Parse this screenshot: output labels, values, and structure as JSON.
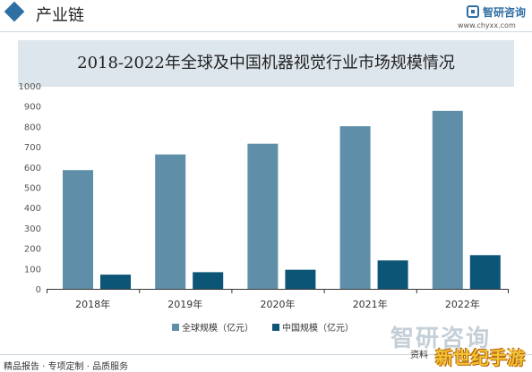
{
  "header": {
    "section_title": "产业链",
    "logo_name": "智研咨询",
    "logo_url": "www.chyxx.com"
  },
  "chart_data": {
    "type": "bar",
    "title": "2018-2022年全球及中国机器视觉行业市场规模情况",
    "categories": [
      "2018年",
      "2019年",
      "2020年",
      "2021年",
      "2022年"
    ],
    "series": [
      {
        "name": "全球规模（亿元）",
        "values": [
          585,
          662,
          715,
          801,
          877
        ],
        "color": "#5f8fa8"
      },
      {
        "name": "中国规模（亿元）",
        "values": [
          70,
          82,
          94,
          140,
          166
        ],
        "color": "#0d5577"
      }
    ],
    "ylim": [
      0,
      1000
    ],
    "yticks": [
      0,
      100,
      200,
      300,
      400,
      500,
      600,
      700,
      800,
      900,
      1000
    ],
    "grid": false,
    "legend_position": "bottom"
  },
  "footer": {
    "text": "精品报告 · 专项定制 · 品质服务",
    "right_text": "资料",
    "watermark": "智研咨询",
    "stamp": "新世纪手游"
  }
}
